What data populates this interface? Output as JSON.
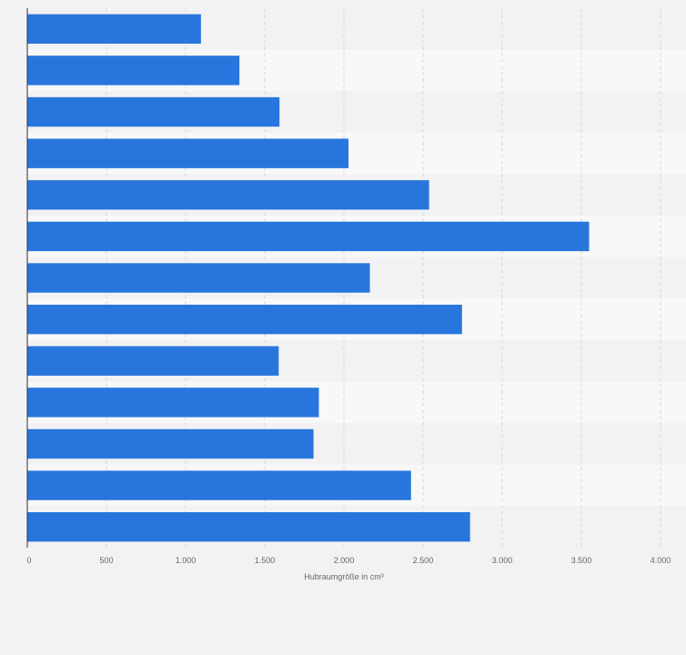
{
  "colors": {
    "bar": "#2876dd",
    "band_dark": "#f2f2f4",
    "band_light": "#f8f8f9",
    "grid": "#d8d8da",
    "axis": "#333333",
    "text": "#666666"
  },
  "chart_data": {
    "type": "bar",
    "orientation": "horizontal",
    "title": "",
    "ylabel": "",
    "xlabel": "Hubraumgröße in cm³",
    "xlim": [
      0,
      4000
    ],
    "xticks": [
      0,
      500,
      1000,
      1500,
      2000,
      2500,
      3000,
      3500,
      4000
    ],
    "xtick_labels": [
      "0",
      "500",
      "1.000",
      "1.500",
      "2.000",
      "2.500",
      "3.000",
      "3.500",
      "4.000"
    ],
    "values": [
      1097,
      1340,
      1593,
      2029,
      2538,
      3549,
      2164,
      2746,
      1588,
      1842,
      1808,
      2424,
      2797
    ],
    "grid": true,
    "legend": "none"
  }
}
